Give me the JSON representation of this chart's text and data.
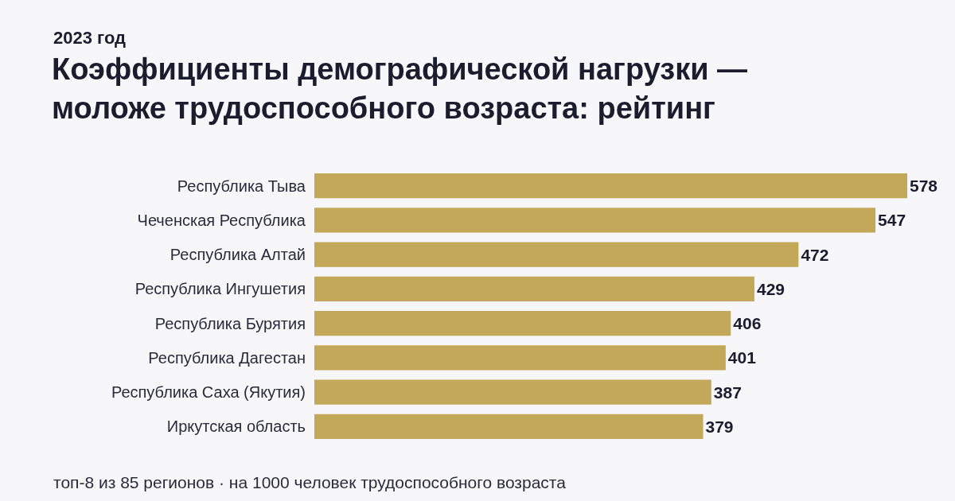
{
  "chart_data": {
    "type": "bar",
    "orientation": "horizontal",
    "title": "Коэффициенты демографической нагрузки —\nмоложе трудоспособного возраста: рейтинг",
    "subtitle": "2023 год",
    "categories": [
      "Республика Тыва",
      "Чеченская Республика",
      "Республика Алтай",
      "Республика Ингушетия",
      "Республика Бурятия",
      "Республика Дагестан",
      "Республика Саха (Якутия)",
      "Иркутская область"
    ],
    "values": [
      578,
      547,
      472,
      429,
      406,
      401,
      387,
      379
    ],
    "color": "#c4a85a",
    "data_labels": true,
    "grid": false,
    "legend": false,
    "annotations": [
      "топ-8 из 85 регионов · на 1000 человек трудоспособного возраста"
    ]
  }
}
